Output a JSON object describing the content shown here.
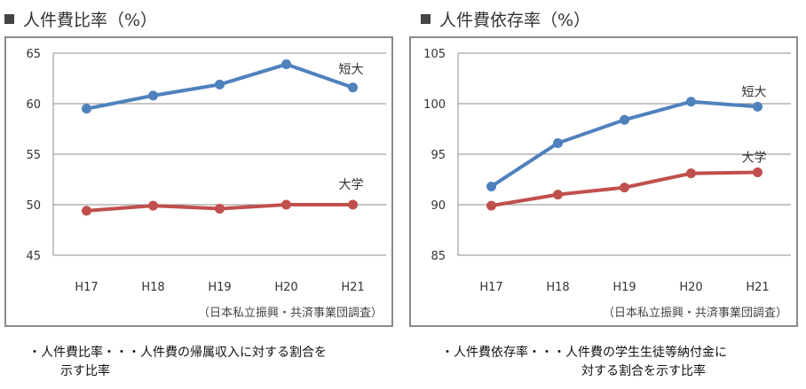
{
  "charts": [
    {
      "title": "人件費比率（%）",
      "source": "（日本私立振興・共済事業団調査）",
      "note_lines": [
        "・人件費比率・・・人件費の帰属収入に対する割合を",
        "示す比率"
      ]
    },
    {
      "title": "人件費依存率（%）",
      "source": "（日本私立振興・共済事業団調査）",
      "note_lines": [
        "・人件費依存率・・・人件費の学生生徒等納付金に",
        "対する割合を示す比率"
      ]
    }
  ],
  "chart_data": [
    {
      "type": "line",
      "title": "人件費比率（%）",
      "categories": [
        "H17",
        "H18",
        "H19",
        "H20",
        "H21"
      ],
      "ylim": [
        45,
        65
      ],
      "yticks": [
        45,
        50,
        55,
        60,
        65
      ],
      "grid": true,
      "series": [
        {
          "name": "短大",
          "color": "#4f81bd",
          "values": [
            59.5,
            60.8,
            61.9,
            63.9,
            61.6
          ]
        },
        {
          "name": "大学",
          "color": "#c0504d",
          "values": [
            49.4,
            49.9,
            49.6,
            50.0,
            50.0
          ]
        }
      ]
    },
    {
      "type": "line",
      "title": "人件費依存率（%）",
      "categories": [
        "H17",
        "H18",
        "H19",
        "H20",
        "H21"
      ],
      "ylim": [
        85,
        105
      ],
      "yticks": [
        85,
        90,
        95,
        100,
        105
      ],
      "grid": true,
      "series": [
        {
          "name": "短大",
          "color": "#4f81bd",
          "values": [
            91.8,
            96.1,
            98.4,
            100.2,
            99.7
          ]
        },
        {
          "name": "大学",
          "color": "#c0504d",
          "values": [
            89.9,
            91.0,
            91.7,
            93.1,
            93.2
          ]
        }
      ]
    }
  ]
}
